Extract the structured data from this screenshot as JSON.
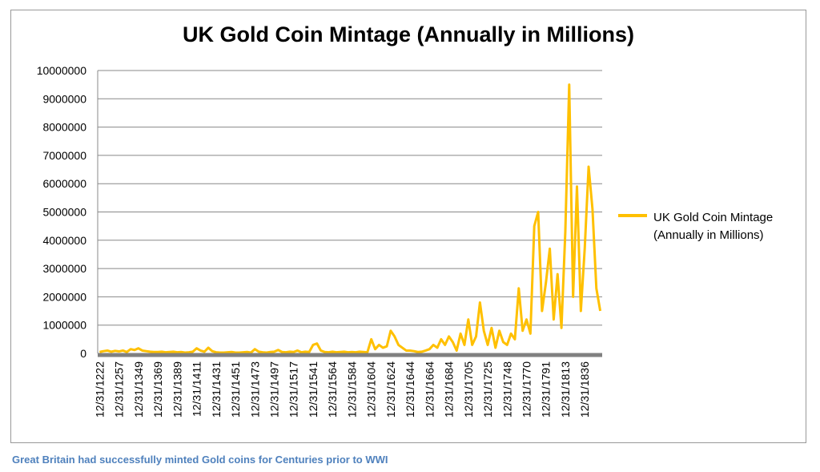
{
  "chart_data": {
    "type": "line",
    "title": "UK Gold Coin Mintage (Annually in Millions)",
    "categories": [
      "12/31/1222",
      null,
      null,
      null,
      null,
      "12/31/1257",
      null,
      null,
      null,
      null,
      "12/31/1349",
      null,
      null,
      null,
      null,
      "12/31/1369",
      null,
      null,
      null,
      null,
      "12/31/1389",
      null,
      null,
      null,
      null,
      "12/31/1411",
      null,
      null,
      null,
      null,
      "12/31/1431",
      null,
      null,
      null,
      null,
      "12/31/1451",
      null,
      null,
      null,
      null,
      "12/31/1473",
      null,
      null,
      null,
      null,
      "12/31/1497",
      null,
      null,
      null,
      null,
      "12/31/1517",
      null,
      null,
      null,
      null,
      "12/31/1541",
      null,
      null,
      null,
      null,
      "12/31/1564",
      null,
      null,
      null,
      null,
      "12/31/1584",
      null,
      null,
      null,
      null,
      "12/31/1604",
      null,
      null,
      null,
      null,
      "12/31/1624",
      null,
      null,
      null,
      null,
      "12/31/1644",
      null,
      null,
      null,
      null,
      "12/31/1664",
      null,
      null,
      null,
      null,
      "12/31/1684",
      null,
      null,
      null,
      null,
      "12/31/1705",
      null,
      null,
      null,
      null,
      "12/31/1725",
      null,
      null,
      null,
      null,
      "12/31/1748",
      null,
      null,
      null,
      null,
      "12/31/1770",
      null,
      null,
      null,
      null,
      "12/31/1791",
      null,
      null,
      null,
      null,
      "12/31/1813",
      null,
      null,
      null,
      null,
      "12/31/1836",
      null,
      null,
      null,
      null
    ],
    "series": [
      {
        "name": "UK Gold Coin Mintage (Annually in Millions)",
        "color": "#ffc000",
        "values": [
          50000,
          80000,
          100000,
          60000,
          90000,
          70000,
          100000,
          50000,
          150000,
          120000,
          180000,
          100000,
          80000,
          60000,
          50000,
          50000,
          60000,
          40000,
          50000,
          60000,
          40000,
          50000,
          30000,
          40000,
          60000,
          180000,
          100000,
          60000,
          200000,
          80000,
          40000,
          30000,
          30000,
          40000,
          50000,
          30000,
          30000,
          40000,
          50000,
          30000,
          150000,
          60000,
          40000,
          30000,
          50000,
          60000,
          120000,
          50000,
          40000,
          60000,
          50000,
          100000,
          40000,
          60000,
          50000,
          300000,
          350000,
          100000,
          50000,
          40000,
          60000,
          40000,
          50000,
          60000,
          40000,
          50000,
          40000,
          60000,
          50000,
          40000,
          500000,
          150000,
          300000,
          200000,
          250000,
          800000,
          600000,
          300000,
          200000,
          100000,
          100000,
          80000,
          50000,
          60000,
          100000,
          150000,
          300000,
          200000,
          500000,
          300000,
          600000,
          400000,
          100000,
          700000,
          300000,
          1200000,
          300000,
          600000,
          1800000,
          800000,
          300000,
          900000,
          200000,
          800000,
          400000,
          300000,
          700000,
          500000,
          2300000,
          800000,
          1200000,
          700000,
          4500000,
          5000000,
          1500000,
          2500000,
          3700000,
          1200000,
          2800000,
          900000,
          4300000,
          9500000,
          2000000,
          5900000,
          1500000,
          3700000,
          6600000,
          5100000,
          2300000,
          1500000
        ]
      }
    ],
    "ylim": [
      0,
      10000000
    ],
    "yticks": [
      0,
      1000000,
      2000000,
      3000000,
      4000000,
      5000000,
      6000000,
      7000000,
      8000000,
      9000000,
      10000000
    ],
    "grid": true,
    "legend": "right"
  },
  "caption": "Great Britain had successfully minted Gold coins for Centuries prior to WWI"
}
